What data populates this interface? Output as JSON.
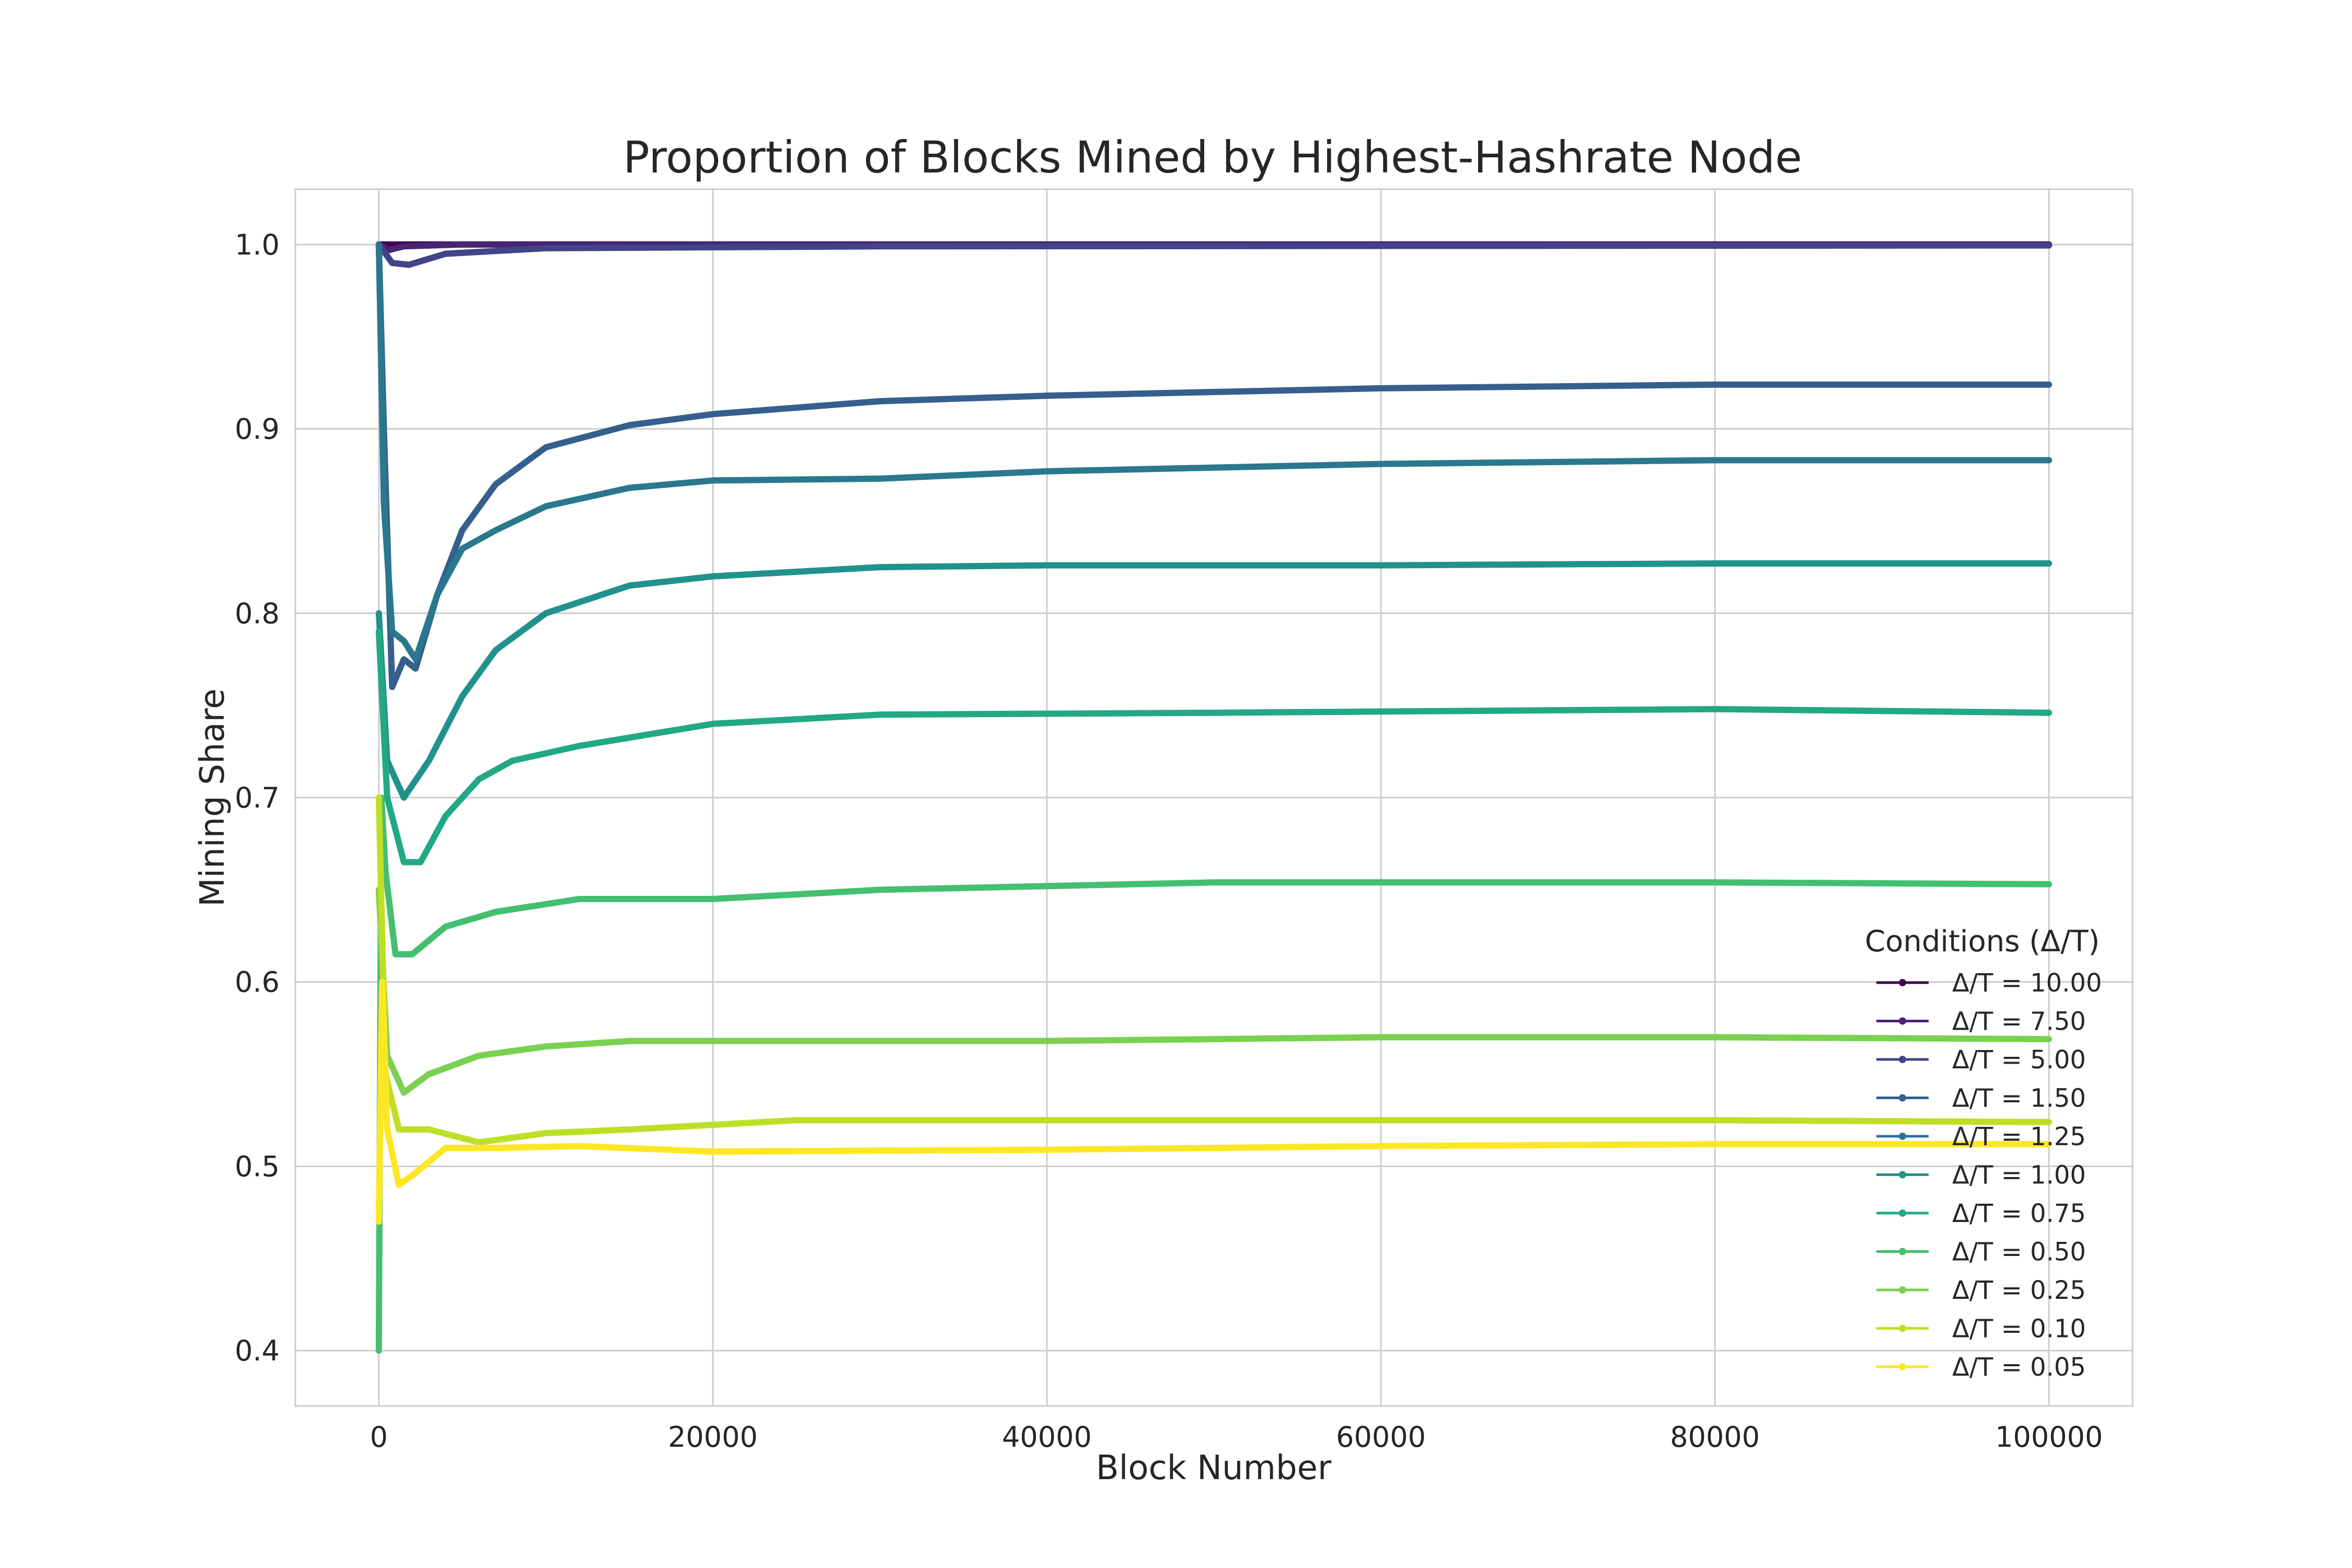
{
  "chart_data": {
    "type": "line",
    "title": "Proportion of Blocks Mined by Highest-Hashrate Node",
    "xlabel": "Block Number",
    "ylabel": "Mining Share",
    "xlim": [
      -5000,
      105000
    ],
    "ylim": [
      0.37,
      1.03
    ],
    "x_ticks": [
      0,
      20000,
      40000,
      60000,
      80000,
      100000
    ],
    "y_ticks": [
      0.4,
      0.5,
      0.6,
      0.7,
      0.8,
      0.9,
      1.0
    ],
    "y_tick_labels": [
      "0.4",
      "0.5",
      "0.6",
      "0.7",
      "0.8",
      "0.9",
      "1.0"
    ],
    "grid": true,
    "legend": {
      "title": "Conditions (Δ/T)",
      "placement": "lower-right"
    },
    "series": [
      {
        "name": "Δ/T = 10.00",
        "color": "#440154",
        "points": [
          [
            0,
            1.0
          ],
          [
            300,
            1.0
          ],
          [
            100000,
            1.0
          ]
        ]
      },
      {
        "name": "Δ/T = 7.50",
        "color": "#482475",
        "points": [
          [
            0,
            1.0
          ],
          [
            600,
            0.997
          ],
          [
            1500,
            0.999
          ],
          [
            5000,
            1.0
          ],
          [
            100000,
            1.0
          ]
        ]
      },
      {
        "name": "Δ/T = 5.00",
        "color": "#414487",
        "points": [
          [
            0,
            1.0
          ],
          [
            800,
            0.99
          ],
          [
            1800,
            0.989
          ],
          [
            4000,
            0.995
          ],
          [
            10000,
            0.998
          ],
          [
            30000,
            0.999
          ],
          [
            100000,
            0.9995
          ]
        ]
      },
      {
        "name": "Δ/T = 1.50",
        "color": "#355f8d",
        "points": [
          [
            0,
            1.0
          ],
          [
            300,
            0.9
          ],
          [
            800,
            0.76
          ],
          [
            1500,
            0.775
          ],
          [
            2200,
            0.77
          ],
          [
            3500,
            0.81
          ],
          [
            5000,
            0.845
          ],
          [
            7000,
            0.87
          ],
          [
            10000,
            0.89
          ],
          [
            15000,
            0.902
          ],
          [
            20000,
            0.908
          ],
          [
            30000,
            0.915
          ],
          [
            40000,
            0.918
          ],
          [
            60000,
            0.922
          ],
          [
            80000,
            0.924
          ],
          [
            100000,
            0.924
          ]
        ]
      },
      {
        "name": "Δ/T = 1.25",
        "color": "#2a788e",
        "points": [
          [
            0,
            1.0
          ],
          [
            300,
            0.86
          ],
          [
            800,
            0.79
          ],
          [
            1500,
            0.785
          ],
          [
            2200,
            0.775
          ],
          [
            3500,
            0.81
          ],
          [
            5000,
            0.835
          ],
          [
            7000,
            0.845
          ],
          [
            10000,
            0.858
          ],
          [
            15000,
            0.868
          ],
          [
            20000,
            0.872
          ],
          [
            30000,
            0.873
          ],
          [
            40000,
            0.877
          ],
          [
            60000,
            0.881
          ],
          [
            80000,
            0.883
          ],
          [
            100000,
            0.883
          ]
        ]
      },
      {
        "name": "Δ/T = 1.00",
        "color": "#21918c",
        "points": [
          [
            0,
            0.8
          ],
          [
            500,
            0.72
          ],
          [
            1500,
            0.7
          ],
          [
            3000,
            0.72
          ],
          [
            5000,
            0.755
          ],
          [
            7000,
            0.78
          ],
          [
            10000,
            0.8
          ],
          [
            15000,
            0.815
          ],
          [
            20000,
            0.82
          ],
          [
            30000,
            0.825
          ],
          [
            40000,
            0.826
          ],
          [
            60000,
            0.826
          ],
          [
            80000,
            0.827
          ],
          [
            100000,
            0.827
          ]
        ]
      },
      {
        "name": "Δ/T = 0.75",
        "color": "#22a884",
        "points": [
          [
            0,
            0.79
          ],
          [
            500,
            0.7
          ],
          [
            1500,
            0.665
          ],
          [
            2500,
            0.665
          ],
          [
            4000,
            0.69
          ],
          [
            6000,
            0.71
          ],
          [
            8000,
            0.72
          ],
          [
            12000,
            0.728
          ],
          [
            20000,
            0.74
          ],
          [
            30000,
            0.745
          ],
          [
            50000,
            0.746
          ],
          [
            80000,
            0.748
          ],
          [
            100000,
            0.746
          ]
        ]
      },
      {
        "name": "Δ/T = 0.50",
        "color": "#44bf70",
        "points": [
          [
            0,
            0.4
          ],
          [
            150,
            0.7
          ],
          [
            400,
            0.66
          ],
          [
            1000,
            0.615
          ],
          [
            2000,
            0.615
          ],
          [
            4000,
            0.63
          ],
          [
            7000,
            0.638
          ],
          [
            12000,
            0.645
          ],
          [
            20000,
            0.645
          ],
          [
            30000,
            0.65
          ],
          [
            50000,
            0.654
          ],
          [
            80000,
            0.654
          ],
          [
            100000,
            0.653
          ]
        ]
      },
      {
        "name": "Δ/T = 0.25",
        "color": "#7ad151",
        "points": [
          [
            0,
            0.65
          ],
          [
            500,
            0.56
          ],
          [
            1500,
            0.54
          ],
          [
            3000,
            0.55
          ],
          [
            6000,
            0.56
          ],
          [
            10000,
            0.565
          ],
          [
            15000,
            0.568
          ],
          [
            25000,
            0.568
          ],
          [
            40000,
            0.568
          ],
          [
            60000,
            0.57
          ],
          [
            80000,
            0.57
          ],
          [
            100000,
            0.569
          ]
        ]
      },
      {
        "name": "Δ/T = 0.10",
        "color": "#bddf26",
        "points": [
          [
            0,
            0.7
          ],
          [
            400,
            0.55
          ],
          [
            1200,
            0.52
          ],
          [
            3000,
            0.52
          ],
          [
            6000,
            0.513
          ],
          [
            10000,
            0.518
          ],
          [
            15000,
            0.52
          ],
          [
            25000,
            0.525
          ],
          [
            40000,
            0.525
          ],
          [
            60000,
            0.525
          ],
          [
            80000,
            0.525
          ],
          [
            100000,
            0.524
          ]
        ]
      },
      {
        "name": "Δ/T = 0.05",
        "color": "#fde725",
        "points": [
          [
            0,
            0.47
          ],
          [
            200,
            0.6
          ],
          [
            500,
            0.52
          ],
          [
            1200,
            0.49
          ],
          [
            2000,
            0.495
          ],
          [
            4000,
            0.51
          ],
          [
            7000,
            0.51
          ],
          [
            12000,
            0.511
          ],
          [
            20000,
            0.508
          ],
          [
            40000,
            0.509
          ],
          [
            60000,
            0.511
          ],
          [
            80000,
            0.512
          ],
          [
            100000,
            0.512
          ]
        ]
      }
    ]
  }
}
